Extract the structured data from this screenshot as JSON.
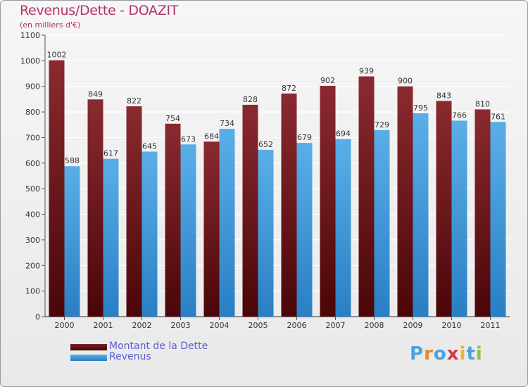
{
  "title": "Revenus/Dette - DOAZIT",
  "subtitle": "(en milliers d'€)",
  "colors": {
    "title": "#b2326a",
    "dette": "#7a1b22",
    "revenus": "#4a9fe0",
    "legend_text": "#5b5bd6"
  },
  "logo": {
    "text": "Proxiti",
    "letters": [
      "P",
      "r",
      "o",
      "x",
      "i",
      "t",
      "i"
    ],
    "letter_colors": [
      "#4aa3df",
      "#e8862a",
      "#4aa3df",
      "#d53a4a",
      "#f0b429",
      "#4aa3df",
      "#8cc63f"
    ]
  },
  "legend": [
    {
      "label": "Montant de la Dette",
      "color": "#5e1015"
    },
    {
      "label": "Revenus",
      "color": "#4a9fe0"
    }
  ],
  "chart_data": {
    "type": "bar",
    "title": "Revenus/Dette - DOAZIT",
    "subtitle": "(en milliers d'€)",
    "xlabel": "",
    "ylabel": "",
    "categories": [
      "2000",
      "2001",
      "2002",
      "2003",
      "2004",
      "2005",
      "2006",
      "2007",
      "2008",
      "2009",
      "2010",
      "2011"
    ],
    "series": [
      {
        "name": "Montant de la Dette",
        "values": [
          1002,
          849,
          822,
          754,
          684,
          828,
          872,
          902,
          939,
          900,
          843,
          810
        ]
      },
      {
        "name": "Revenus",
        "values": [
          588,
          617,
          645,
          673,
          734,
          652,
          679,
          694,
          729,
          795,
          766,
          761
        ]
      }
    ],
    "ylim": [
      0,
      1100
    ],
    "yticks": [
      0,
      100,
      200,
      300,
      400,
      500,
      600,
      700,
      800,
      900,
      1000,
      1100
    ],
    "grid": true,
    "legend_position": "bottom-left"
  }
}
